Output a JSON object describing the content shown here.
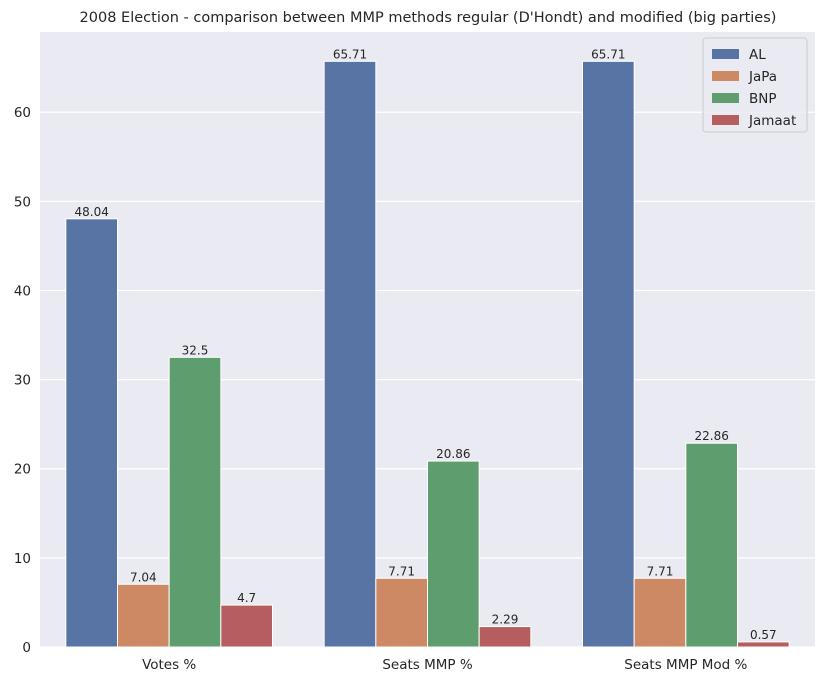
{
  "chart_data": {
    "type": "bar",
    "title": "2008 Election - comparison between MMP methods regular (D'Hondt) and modified (big parties)",
    "categories": [
      "Votes %",
      "Seats MMP %",
      "Seats MMP Mod %"
    ],
    "series": [
      {
        "name": "AL",
        "color": "#5874a5",
        "values": [
          48.04,
          65.71,
          65.71
        ],
        "labels": [
          "48.04",
          "65.71",
          "65.71"
        ]
      },
      {
        "name": "JaPa",
        "color": "#cc8963",
        "values": [
          7.04,
          7.71,
          7.71
        ],
        "labels": [
          "7.04",
          "7.71",
          "7.71"
        ]
      },
      {
        "name": "BNP",
        "color": "#5e9e6e",
        "values": [
          32.5,
          20.86,
          22.86
        ],
        "labels": [
          "32.5",
          "20.86",
          "22.86"
        ]
      },
      {
        "name": "Jamaat",
        "color": "#b65d60",
        "values": [
          4.7,
          2.29,
          0.57
        ],
        "labels": [
          "4.7",
          "2.29",
          "0.57"
        ]
      }
    ],
    "xlabel": "",
    "ylabel": "",
    "ylim": [
      0,
      69
    ],
    "yticks": [
      0,
      10,
      20,
      30,
      40,
      50,
      60
    ],
    "grid": true,
    "legend_position": "top-right",
    "background_color": "#eaeaf2",
    "grid_color": "#ffffff"
  }
}
